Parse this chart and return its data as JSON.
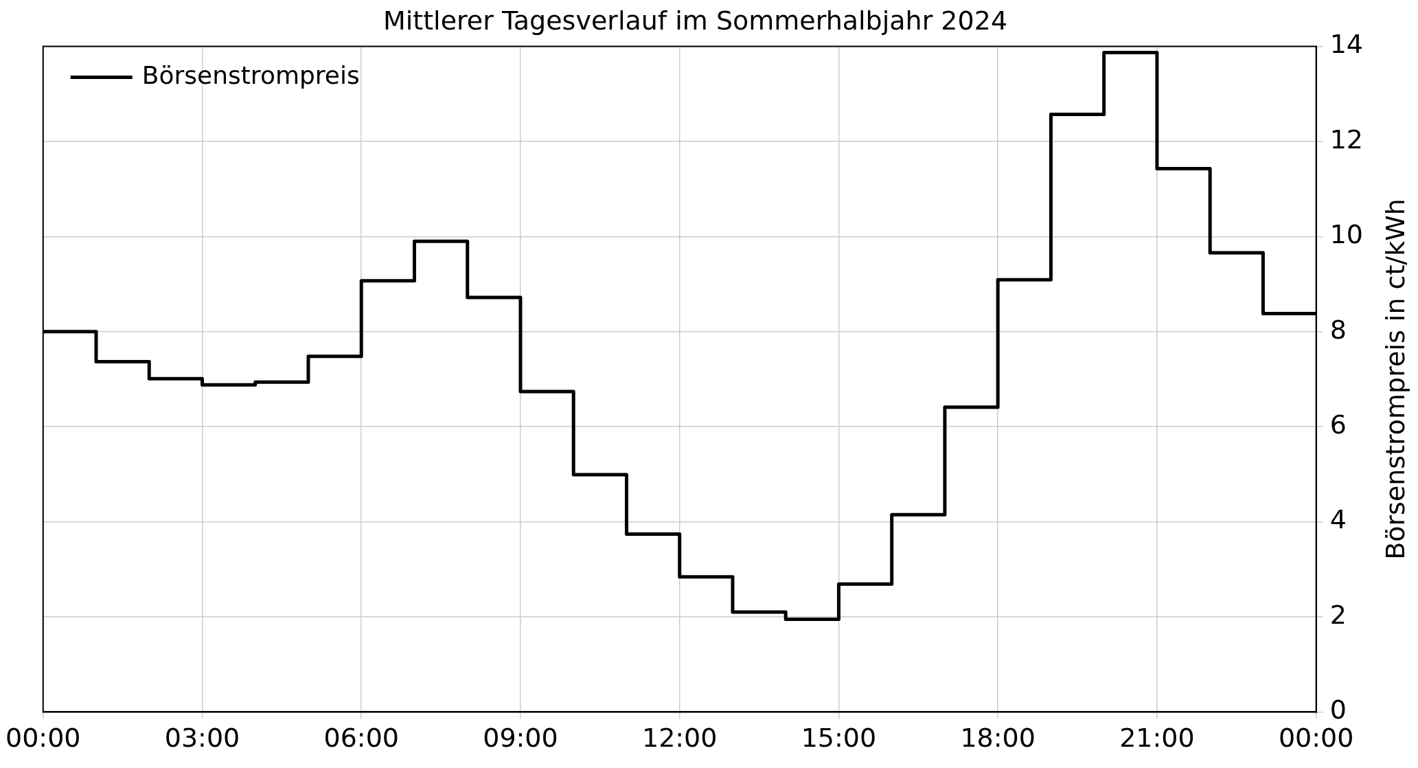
{
  "chart_data": {
    "type": "step",
    "title": "Mittlerer Tagesverlauf im Sommerhalbjahr 2024",
    "ylabel": "Börsenstrompreis in ct/kWh",
    "x": [
      0,
      1,
      2,
      3,
      4,
      5,
      6,
      7,
      8,
      9,
      10,
      11,
      12,
      13,
      14,
      15,
      16,
      17,
      18,
      19,
      20,
      21,
      22,
      23,
      24
    ],
    "series": [
      {
        "name": "Börsenstrompreis",
        "color": "#000000",
        "values": [
          8.0,
          7.37,
          7.01,
          6.88,
          6.94,
          7.48,
          9.07,
          9.9,
          8.72,
          6.74,
          4.99,
          3.74,
          2.84,
          2.1,
          1.95,
          2.69,
          4.15,
          6.41,
          9.09,
          12.57,
          13.87,
          11.43,
          9.66,
          8.38,
          8.38
        ]
      }
    ],
    "xlim": [
      0,
      24
    ],
    "xticks": [
      {
        "value": 0,
        "label": "00:00"
      },
      {
        "value": 3,
        "label": "03:00"
      },
      {
        "value": 6,
        "label": "06:00"
      },
      {
        "value": 9,
        "label": "09:00"
      },
      {
        "value": 12,
        "label": "12:00"
      },
      {
        "value": 15,
        "label": "15:00"
      },
      {
        "value": 18,
        "label": "18:00"
      },
      {
        "value": 21,
        "label": "21:00"
      },
      {
        "value": 24,
        "label": "00:00"
      }
    ],
    "ylim": [
      0,
      14
    ],
    "yticks": [
      0,
      2,
      4,
      6,
      8,
      10,
      12,
      14
    ],
    "grid": true,
    "legend": "top left",
    "line_style": "solid",
    "marker": "none"
  }
}
